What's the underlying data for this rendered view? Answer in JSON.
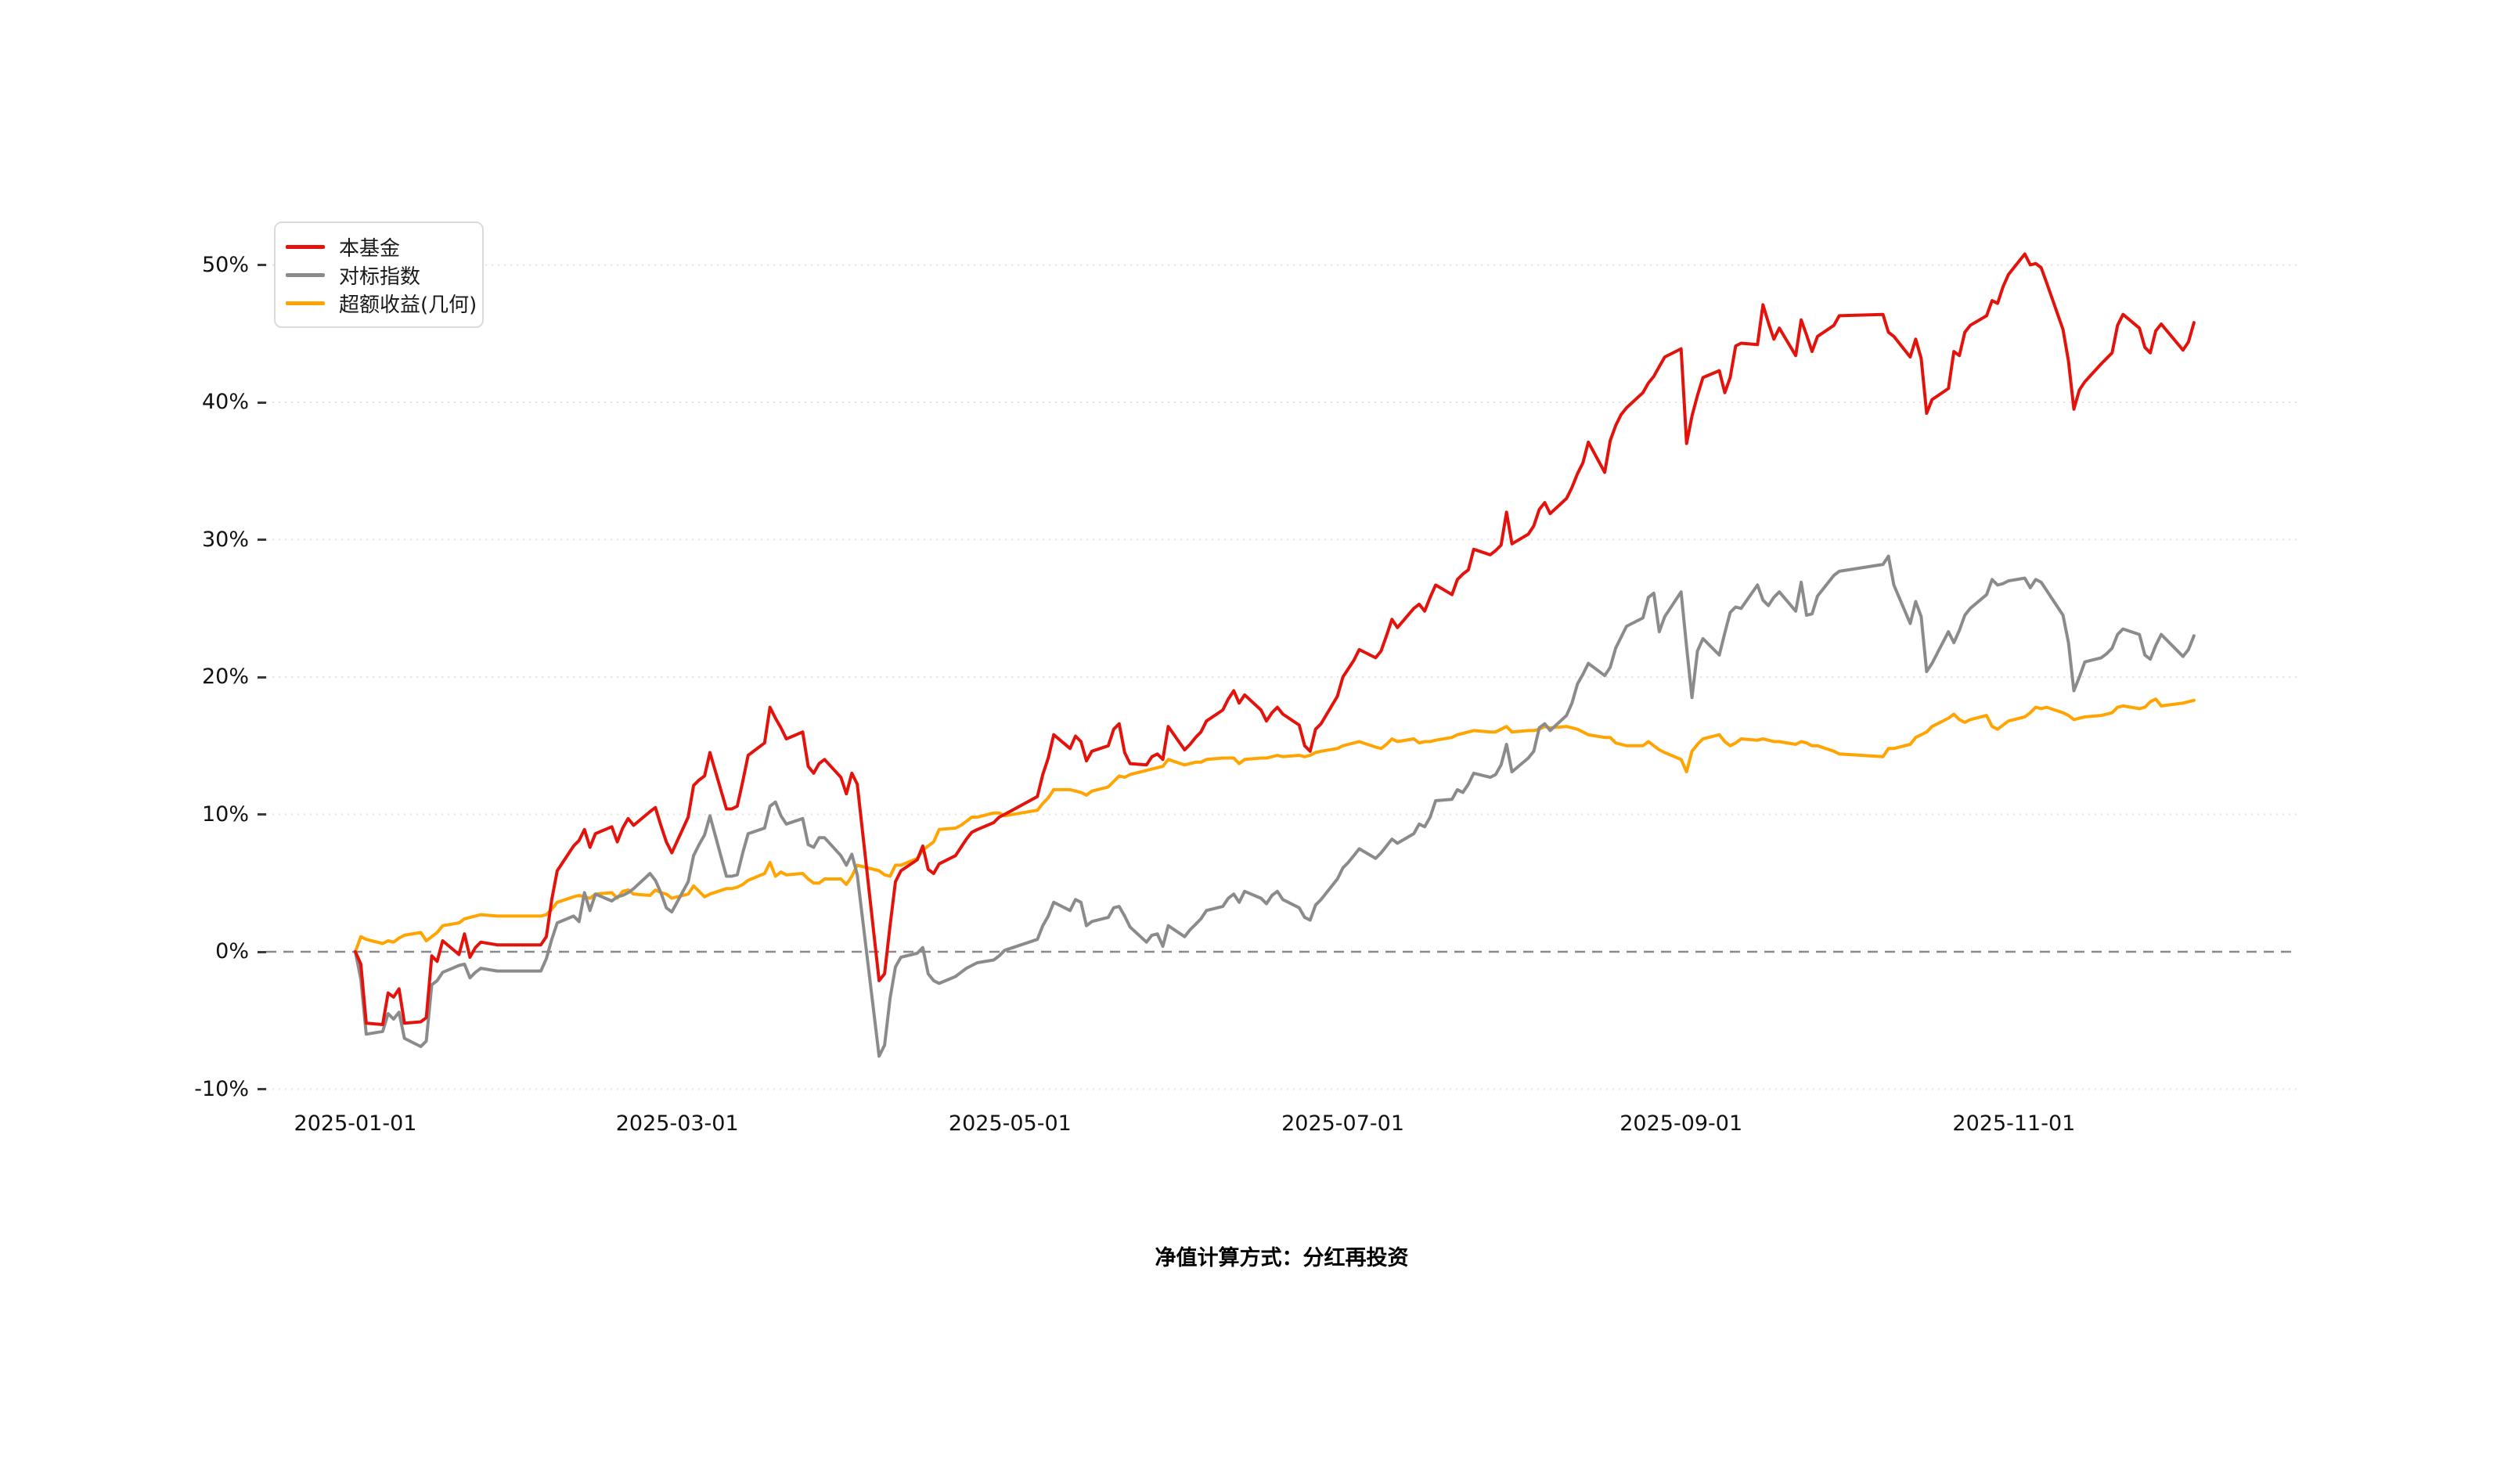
{
  "page": {
    "background": "#ffffff"
  },
  "legend": {
    "items": [
      {
        "label": "本基金",
        "color": "#e3120b"
      },
      {
        "label": "对标指数",
        "color": "#8b8b8b"
      },
      {
        "label": "超额收益(几何)",
        "color": "#ffa400"
      }
    ]
  },
  "footer": {
    "note": "净值计算方式：分红再投资"
  },
  "chart_data": {
    "type": "line",
    "title": "",
    "xlabel": "",
    "ylabel": "",
    "unit": "%",
    "ylim": [
      -10,
      52
    ],
    "grid": "horizontal-dotted",
    "legend_position": "top-left",
    "x_ticks": [
      "2025-01-01",
      "2025-03-01",
      "2025-05-01",
      "2025-07-01",
      "2025-09-01",
      "2025-11-01"
    ],
    "y_ticks": [
      {
        "label": "50%",
        "value": 50
      },
      {
        "label": "40%",
        "value": 40
      },
      {
        "label": "30%",
        "value": 30
      },
      {
        "label": "20%",
        "value": 20
      },
      {
        "label": "10%",
        "value": 10
      },
      {
        "label": "0%",
        "value": 0
      },
      {
        "label": "-10%",
        "value": -10
      }
    ],
    "zero_line_dashed": true,
    "series_names": [
      "本基金",
      "对标指数",
      "超额收益(几何)"
    ],
    "series_colors": [
      "#e3120b",
      "#8b8b8b",
      "#ffa400"
    ],
    "rows": [
      [
        "2025-01-01",
        0.0,
        0.0,
        0.0
      ],
      [
        "2025-01-02",
        -0.9,
        -2.0,
        1.1
      ],
      [
        "2025-01-03",
        -5.2,
        -6.0,
        0.9
      ],
      [
        "2025-01-06",
        -5.3,
        -5.8,
        0.6
      ],
      [
        "2025-01-07",
        -3.0,
        -4.5,
        0.8
      ],
      [
        "2025-01-08",
        -3.3,
        -4.9,
        0.7
      ],
      [
        "2025-01-09",
        -2.7,
        -4.4,
        1.0
      ],
      [
        "2025-01-10",
        -5.2,
        -6.3,
        1.2
      ],
      [
        "2025-01-13",
        -5.1,
        -6.9,
        1.4
      ],
      [
        "2025-01-14",
        -4.8,
        -6.5,
        0.8
      ],
      [
        "2025-01-15",
        -0.3,
        -2.4,
        1.1
      ],
      [
        "2025-01-16",
        -0.7,
        -2.1,
        1.4
      ],
      [
        "2025-01-17",
        0.8,
        -1.5,
        1.9
      ],
      [
        "2025-01-20",
        -0.2,
        -1.0,
        2.1
      ],
      [
        "2025-01-21",
        1.3,
        -0.9,
        2.4
      ],
      [
        "2025-01-22",
        -0.4,
        -1.9,
        2.5
      ],
      [
        "2025-01-23",
        0.3,
        -1.5,
        2.6
      ],
      [
        "2025-01-24",
        0.7,
        -1.2,
        2.7
      ],
      [
        "2025-01-27",
        0.5,
        -1.4,
        2.6
      ],
      [
        "2025-02-04",
        0.5,
        -1.4,
        2.6
      ],
      [
        "2025-02-05",
        1.1,
        -0.5,
        2.7
      ],
      [
        "2025-02-06",
        3.8,
        0.9,
        3.1
      ],
      [
        "2025-02-07",
        5.9,
        2.1,
        3.6
      ],
      [
        "2025-02-10",
        7.7,
        2.6,
        4.0
      ],
      [
        "2025-02-11",
        8.1,
        2.2,
        4.1
      ],
      [
        "2025-02-12",
        8.9,
        4.3,
        4.0
      ],
      [
        "2025-02-13",
        7.6,
        3.0,
        3.9
      ],
      [
        "2025-02-14",
        8.6,
        4.2,
        4.2
      ],
      [
        "2025-02-17",
        9.1,
        3.7,
        4.3
      ],
      [
        "2025-02-18",
        8.0,
        4.0,
        3.9
      ],
      [
        "2025-02-19",
        9.0,
        4.1,
        4.4
      ],
      [
        "2025-02-20",
        9.7,
        4.3,
        4.5
      ],
      [
        "2025-02-21",
        9.2,
        4.6,
        4.2
      ],
      [
        "2025-02-24",
        10.2,
        5.7,
        4.1
      ],
      [
        "2025-02-25",
        10.5,
        5.2,
        4.5
      ],
      [
        "2025-02-26",
        9.2,
        4.3,
        4.3
      ],
      [
        "2025-02-27",
        8.0,
        3.2,
        4.2
      ],
      [
        "2025-02-28",
        7.2,
        2.9,
        3.9
      ],
      [
        "2025-03-03",
        9.8,
        5.1,
        4.2
      ],
      [
        "2025-03-04",
        12.1,
        7.0,
        4.8
      ],
      [
        "2025-03-05",
        12.5,
        7.8,
        4.4
      ],
      [
        "2025-03-06",
        12.8,
        8.5,
        4.0
      ],
      [
        "2025-03-07",
        14.5,
        9.9,
        4.2
      ],
      [
        "2025-03-10",
        10.4,
        5.5,
        4.6
      ],
      [
        "2025-03-11",
        10.4,
        5.5,
        4.6
      ],
      [
        "2025-03-12",
        10.6,
        5.6,
        4.7
      ],
      [
        "2025-03-13",
        12.4,
        7.2,
        4.9
      ],
      [
        "2025-03-14",
        14.3,
        8.6,
        5.2
      ],
      [
        "2025-03-17",
        15.2,
        9.0,
        5.7
      ],
      [
        "2025-03-18",
        17.8,
        10.6,
        6.5
      ],
      [
        "2025-03-19",
        17.0,
        10.9,
        5.5
      ],
      [
        "2025-03-20",
        16.3,
        9.9,
        5.8
      ],
      [
        "2025-03-21",
        15.5,
        9.3,
        5.6
      ],
      [
        "2025-03-24",
        16.0,
        9.7,
        5.7
      ],
      [
        "2025-03-25",
        13.5,
        7.8,
        5.3
      ],
      [
        "2025-03-26",
        13.0,
        7.6,
        5.0
      ],
      [
        "2025-03-27",
        13.7,
        8.3,
        5.0
      ],
      [
        "2025-03-28",
        14.0,
        8.3,
        5.3
      ],
      [
        "2025-03-31",
        12.7,
        7.0,
        5.3
      ],
      [
        "2025-04-01",
        11.5,
        6.3,
        4.9
      ],
      [
        "2025-04-02",
        13.0,
        7.1,
        5.5
      ],
      [
        "2025-04-03",
        12.2,
        5.6,
        6.3
      ],
      [
        "2025-04-07",
        -2.1,
        -7.6,
        5.9
      ],
      [
        "2025-04-08",
        -1.6,
        -6.8,
        5.6
      ],
      [
        "2025-04-09",
        1.9,
        -3.4,
        5.5
      ],
      [
        "2025-04-10",
        5.1,
        -1.1,
        6.3
      ],
      [
        "2025-04-11",
        5.9,
        -0.4,
        6.3
      ],
      [
        "2025-04-14",
        6.7,
        -0.1,
        6.8
      ],
      [
        "2025-04-15",
        7.7,
        0.3,
        7.4
      ],
      [
        "2025-04-16",
        6.0,
        -1.6,
        7.7
      ],
      [
        "2025-04-17",
        5.7,
        -2.1,
        8.0
      ],
      [
        "2025-04-18",
        6.4,
        -2.3,
        8.9
      ],
      [
        "2025-04-21",
        7.0,
        -1.8,
        9.0
      ],
      [
        "2025-04-22",
        7.6,
        -1.5,
        9.2
      ],
      [
        "2025-04-23",
        8.2,
        -1.2,
        9.5
      ],
      [
        "2025-04-24",
        8.7,
        -1.0,
        9.8
      ],
      [
        "2025-04-25",
        8.9,
        -0.8,
        9.8
      ],
      [
        "2025-04-28",
        9.4,
        -0.6,
        10.1
      ],
      [
        "2025-04-29",
        9.8,
        -0.3,
        10.1
      ],
      [
        "2025-04-30",
        10.0,
        0.1,
        9.9
      ],
      [
        "2025-05-06",
        11.3,
        0.9,
        10.3
      ],
      [
        "2025-05-07",
        12.9,
        1.9,
        10.8
      ],
      [
        "2025-05-08",
        14.1,
        2.6,
        11.2
      ],
      [
        "2025-05-09",
        15.8,
        3.6,
        11.8
      ],
      [
        "2025-05-12",
        14.8,
        3.0,
        11.8
      ],
      [
        "2025-05-13",
        15.7,
        3.8,
        11.7
      ],
      [
        "2025-05-14",
        15.3,
        3.6,
        11.6
      ],
      [
        "2025-05-15",
        13.9,
        1.9,
        11.4
      ],
      [
        "2025-05-16",
        14.6,
        2.2,
        11.7
      ],
      [
        "2025-05-19",
        15.0,
        2.5,
        12.0
      ],
      [
        "2025-05-20",
        16.2,
        3.2,
        12.4
      ],
      [
        "2025-05-21",
        16.6,
        3.3,
        12.8
      ],
      [
        "2025-05-22",
        14.5,
        2.6,
        12.7
      ],
      [
        "2025-05-23",
        13.7,
        1.8,
        12.9
      ],
      [
        "2025-05-26",
        13.6,
        0.7,
        13.2
      ],
      [
        "2025-05-27",
        14.2,
        1.2,
        13.3
      ],
      [
        "2025-05-28",
        14.4,
        1.3,
        13.4
      ],
      [
        "2025-05-29",
        14.0,
        0.4,
        13.5
      ],
      [
        "2025-05-30",
        16.4,
        1.9,
        14.0
      ],
      [
        "2025-06-02",
        14.7,
        1.1,
        13.6
      ],
      [
        "2025-06-03",
        15.1,
        1.6,
        13.7
      ],
      [
        "2025-06-04",
        15.6,
        2.0,
        13.8
      ],
      [
        "2025-06-05",
        16.0,
        2.4,
        13.8
      ],
      [
        "2025-06-06",
        16.8,
        3.0,
        14.0
      ],
      [
        "2025-06-09",
        17.6,
        3.3,
        14.1
      ],
      [
        "2025-06-10",
        18.4,
        3.9,
        14.1
      ],
      [
        "2025-06-11",
        19.0,
        4.2,
        14.1
      ],
      [
        "2025-06-12",
        18.1,
        3.6,
        13.7
      ],
      [
        "2025-06-13",
        18.7,
        4.4,
        14.0
      ],
      [
        "2025-06-16",
        17.6,
        3.9,
        14.1
      ],
      [
        "2025-06-17",
        16.8,
        3.5,
        14.1
      ],
      [
        "2025-06-18",
        17.4,
        4.1,
        14.2
      ],
      [
        "2025-06-19",
        17.8,
        4.4,
        14.3
      ],
      [
        "2025-06-20",
        17.3,
        3.8,
        14.2
      ],
      [
        "2025-06-23",
        16.5,
        3.2,
        14.3
      ],
      [
        "2025-06-24",
        15.0,
        2.5,
        14.2
      ],
      [
        "2025-06-25",
        14.6,
        2.3,
        14.3
      ],
      [
        "2025-06-26",
        16.2,
        3.4,
        14.5
      ],
      [
        "2025-06-27",
        16.6,
        3.8,
        14.6
      ],
      [
        "2025-06-30",
        18.6,
        5.3,
        14.8
      ],
      [
        "2025-07-01",
        20.0,
        6.1,
        15.0
      ],
      [
        "2025-07-02",
        20.6,
        6.5,
        15.1
      ],
      [
        "2025-07-03",
        21.2,
        7.0,
        15.2
      ],
      [
        "2025-07-04",
        22.0,
        7.5,
        15.3
      ],
      [
        "2025-07-07",
        21.4,
        6.8,
        14.9
      ],
      [
        "2025-07-08",
        21.9,
        7.2,
        14.8
      ],
      [
        "2025-07-09",
        23.0,
        7.7,
        15.1
      ],
      [
        "2025-07-10",
        24.2,
        8.2,
        15.5
      ],
      [
        "2025-07-11",
        23.6,
        7.9,
        15.3
      ],
      [
        "2025-07-14",
        25.0,
        8.6,
        15.5
      ],
      [
        "2025-07-15",
        25.3,
        9.3,
        15.2
      ],
      [
        "2025-07-16",
        24.8,
        9.1,
        15.3
      ],
      [
        "2025-07-17",
        25.8,
        9.8,
        15.3
      ],
      [
        "2025-07-18",
        26.7,
        11.0,
        15.4
      ],
      [
        "2025-07-21",
        26.0,
        11.1,
        15.6
      ],
      [
        "2025-07-22",
        27.1,
        11.8,
        15.8
      ],
      [
        "2025-07-23",
        27.5,
        11.6,
        15.9
      ],
      [
        "2025-07-24",
        27.8,
        12.2,
        16.0
      ],
      [
        "2025-07-25",
        29.3,
        13.0,
        16.1
      ],
      [
        "2025-07-28",
        28.9,
        12.7,
        16.0
      ],
      [
        "2025-07-29",
        29.2,
        12.9,
        16.0
      ],
      [
        "2025-07-30",
        29.6,
        13.6,
        16.2
      ],
      [
        "2025-07-31",
        32.0,
        15.1,
        16.4
      ],
      [
        "2025-08-01",
        29.7,
        13.1,
        16.0
      ],
      [
        "2025-08-04",
        30.4,
        14.1,
        16.1
      ],
      [
        "2025-08-05",
        31.0,
        14.6,
        16.1
      ],
      [
        "2025-08-06",
        32.2,
        16.3,
        16.2
      ],
      [
        "2025-08-07",
        32.7,
        16.6,
        16.4
      ],
      [
        "2025-08-08",
        31.9,
        16.1,
        16.3
      ],
      [
        "2025-08-11",
        33.0,
        17.2,
        16.4
      ],
      [
        "2025-08-12",
        33.8,
        18.1,
        16.3
      ],
      [
        "2025-08-13",
        34.8,
        19.5,
        16.2
      ],
      [
        "2025-08-14",
        35.6,
        20.2,
        16.0
      ],
      [
        "2025-08-15",
        37.1,
        21.0,
        15.8
      ],
      [
        "2025-08-18",
        34.9,
        20.1,
        15.6
      ],
      [
        "2025-08-19",
        37.2,
        20.7,
        15.6
      ],
      [
        "2025-08-20",
        38.3,
        22.1,
        15.2
      ],
      [
        "2025-08-21",
        39.1,
        22.9,
        15.1
      ],
      [
        "2025-08-22",
        39.6,
        23.7,
        15.0
      ],
      [
        "2025-08-25",
        40.7,
        24.3,
        15.0
      ],
      [
        "2025-08-26",
        41.4,
        25.8,
        15.3
      ],
      [
        "2025-08-27",
        41.9,
        26.1,
        15.0
      ],
      [
        "2025-08-28",
        42.6,
        23.3,
        14.7
      ],
      [
        "2025-08-29",
        43.3,
        24.4,
        14.5
      ],
      [
        "2025-09-01",
        43.9,
        26.2,
        14.0
      ],
      [
        "2025-09-02",
        37.0,
        22.2,
        13.1
      ],
      [
        "2025-09-03",
        39.0,
        18.5,
        14.6
      ],
      [
        "2025-09-04",
        40.5,
        21.9,
        15.1
      ],
      [
        "2025-09-05",
        41.8,
        22.8,
        15.5
      ],
      [
        "2025-09-08",
        42.3,
        21.6,
        15.8
      ],
      [
        "2025-09-09",
        40.7,
        23.2,
        15.3
      ],
      [
        "2025-09-10",
        41.8,
        24.7,
        15.0
      ],
      [
        "2025-09-11",
        44.1,
        25.1,
        15.2
      ],
      [
        "2025-09-12",
        44.3,
        25.0,
        15.5
      ],
      [
        "2025-09-15",
        44.2,
        26.7,
        15.4
      ],
      [
        "2025-09-16",
        47.1,
        25.6,
        15.5
      ],
      [
        "2025-09-17",
        45.8,
        25.2,
        15.4
      ],
      [
        "2025-09-18",
        44.6,
        25.8,
        15.3
      ],
      [
        "2025-09-19",
        45.4,
        26.2,
        15.3
      ],
      [
        "2025-09-22",
        43.4,
        24.8,
        15.1
      ],
      [
        "2025-09-23",
        46.0,
        26.9,
        15.3
      ],
      [
        "2025-09-24",
        44.9,
        24.5,
        15.2
      ],
      [
        "2025-09-25",
        43.7,
        24.6,
        15.0
      ],
      [
        "2025-09-26",
        44.8,
        25.9,
        15.0
      ],
      [
        "2025-09-29",
        45.6,
        27.4,
        14.6
      ],
      [
        "2025-09-30",
        46.3,
        27.7,
        14.4
      ],
      [
        "2025-10-08",
        46.4,
        28.2,
        14.2
      ],
      [
        "2025-10-09",
        45.1,
        28.8,
        14.8
      ],
      [
        "2025-10-10",
        44.8,
        26.7,
        14.8
      ],
      [
        "2025-10-13",
        43.3,
        23.9,
        15.1
      ],
      [
        "2025-10-14",
        44.6,
        25.5,
        15.6
      ],
      [
        "2025-10-15",
        43.2,
        24.4,
        15.8
      ],
      [
        "2025-10-16",
        39.2,
        20.4,
        16.0
      ],
      [
        "2025-10-17",
        40.2,
        21.0,
        16.4
      ],
      [
        "2025-10-20",
        41.0,
        23.3,
        17.0
      ],
      [
        "2025-10-21",
        43.7,
        22.5,
        17.3
      ],
      [
        "2025-10-22",
        43.4,
        23.4,
        16.9
      ],
      [
        "2025-10-23",
        45.1,
        24.5,
        16.7
      ],
      [
        "2025-10-24",
        45.6,
        25.0,
        16.9
      ],
      [
        "2025-10-27",
        46.3,
        26.0,
        17.2
      ],
      [
        "2025-10-28",
        47.4,
        27.1,
        16.4
      ],
      [
        "2025-10-29",
        47.2,
        26.7,
        16.2
      ],
      [
        "2025-10-30",
        48.4,
        26.8,
        16.5
      ],
      [
        "2025-10-31",
        49.3,
        27.0,
        16.8
      ],
      [
        "2025-11-03",
        50.8,
        27.2,
        17.1
      ],
      [
        "2025-11-04",
        50.0,
        26.5,
        17.4
      ],
      [
        "2025-11-05",
        50.1,
        27.1,
        17.8
      ],
      [
        "2025-11-06",
        49.8,
        26.9,
        17.7
      ],
      [
        "2025-11-07",
        48.7,
        26.3,
        17.8
      ],
      [
        "2025-11-10",
        45.3,
        24.5,
        17.4
      ],
      [
        "2025-11-11",
        43.0,
        22.5,
        17.2
      ],
      [
        "2025-11-12",
        39.5,
        19.0,
        16.9
      ],
      [
        "2025-11-13",
        40.9,
        20.0,
        17.0
      ],
      [
        "2025-11-14",
        41.5,
        21.1,
        17.1
      ],
      [
        "2025-11-17",
        42.8,
        21.4,
        17.2
      ],
      [
        "2025-11-18",
        43.2,
        21.7,
        17.3
      ],
      [
        "2025-11-19",
        43.6,
        22.1,
        17.4
      ],
      [
        "2025-11-20",
        45.6,
        23.1,
        17.8
      ],
      [
        "2025-11-21",
        46.4,
        23.5,
        17.9
      ],
      [
        "2025-11-24",
        45.4,
        23.1,
        17.7
      ],
      [
        "2025-11-25",
        44.0,
        21.6,
        17.8
      ],
      [
        "2025-11-26",
        43.6,
        21.3,
        18.2
      ],
      [
        "2025-11-27",
        45.2,
        22.3,
        18.4
      ],
      [
        "2025-11-28",
        45.7,
        23.1,
        17.9
      ],
      [
        "2025-12-02",
        43.8,
        21.5,
        18.1
      ],
      [
        "2025-12-03",
        44.4,
        22.0,
        18.2
      ],
      [
        "2025-12-04",
        45.8,
        23.0,
        18.3
      ]
    ]
  }
}
